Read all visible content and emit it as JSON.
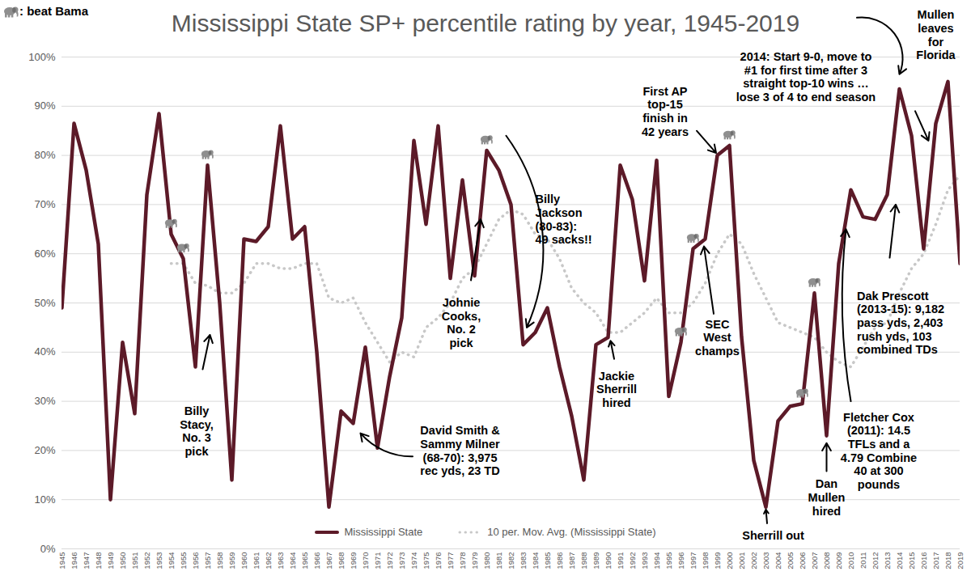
{
  "chart_data": {
    "type": "line",
    "title": "Mississippi State SP+ percentile rating by year, 1945-2019",
    "x": [
      1945,
      1946,
      1947,
      1948,
      1949,
      1950,
      1951,
      1952,
      1953,
      1954,
      1955,
      1956,
      1957,
      1958,
      1959,
      1960,
      1961,
      1962,
      1963,
      1964,
      1965,
      1966,
      1967,
      1968,
      1969,
      1970,
      1971,
      1972,
      1973,
      1974,
      1975,
      1976,
      1977,
      1978,
      1979,
      1980,
      1981,
      1982,
      1983,
      1984,
      1985,
      1986,
      1987,
      1988,
      1989,
      1990,
      1991,
      1992,
      1993,
      1994,
      1995,
      1996,
      1997,
      1998,
      1999,
      2000,
      2001,
      2002,
      2003,
      2004,
      2005,
      2006,
      2007,
      2008,
      2009,
      2010,
      2011,
      2012,
      2013,
      2014,
      2015,
      2016,
      2017,
      2018,
      2019
    ],
    "series": [
      {
        "name": "Mississippi State",
        "color": "#5c1a28",
        "line_style": "solid",
        "values": [
          49,
          86.5,
          77,
          62,
          10,
          42,
          27.5,
          72,
          88.5,
          64,
          59,
          37,
          78,
          50,
          14,
          63,
          62.5,
          65.5,
          86,
          63,
          65.5,
          40,
          8.5,
          28,
          25.5,
          41,
          20.5,
          35,
          47,
          83,
          66,
          86,
          55,
          75,
          55.5,
          81,
          77,
          70,
          41.5,
          44,
          49,
          37,
          27,
          14,
          41.5,
          43,
          78,
          71,
          54.5,
          79,
          31,
          42,
          61,
          63,
          80,
          82,
          43,
          18,
          8.5,
          26,
          29,
          29.5,
          52,
          23,
          58,
          73,
          67.5,
          67,
          72,
          93.5,
          84,
          61,
          86.5,
          95,
          58
        ]
      },
      {
        "name": "10 per. Mov. Avg. (Mississippi State)",
        "color": "#c8c8c8",
        "line_style": "dotted",
        "values": [
          null,
          null,
          null,
          null,
          null,
          null,
          null,
          null,
          null,
          58,
          58,
          54,
          53.5,
          52,
          52,
          54,
          58,
          58,
          57,
          57,
          58,
          58,
          51,
          50,
          51,
          46,
          42,
          38,
          40,
          39,
          45,
          47,
          50,
          55,
          57,
          62,
          67,
          69,
          68,
          64,
          63,
          59,
          53,
          50,
          48,
          44,
          44,
          46,
          48,
          51,
          48,
          48,
          50,
          54,
          60,
          64,
          62,
          56,
          51,
          46,
          45,
          44,
          43,
          40,
          38,
          37,
          41,
          45,
          46,
          52,
          57,
          60,
          66,
          73,
          76
        ]
      }
    ],
    "xlim": [
      1945,
      2019
    ],
    "xticks": [
      1945,
      1946,
      1947,
      1948,
      1949,
      1950,
      1951,
      1952,
      1953,
      1954,
      1955,
      1956,
      1957,
      1958,
      1959,
      1960,
      1961,
      1962,
      1963,
      1964,
      1965,
      1966,
      1967,
      1968,
      1969,
      1970,
      1971,
      1972,
      1973,
      1974,
      1975,
      1976,
      1977,
      1978,
      1979,
      1980,
      1981,
      1982,
      1983,
      1984,
      1985,
      1986,
      1987,
      1988,
      1989,
      1990,
      1991,
      1992,
      1993,
      1994,
      1995,
      1996,
      1997,
      1998,
      1999,
      2000,
      2001,
      2002,
      2003,
      2004,
      2005,
      2006,
      2007,
      2008,
      2009,
      2010,
      2011,
      2012,
      2013,
      2014,
      2015,
      2016,
      2017,
      2018,
      2019
    ],
    "ylim": [
      0,
      100
    ],
    "yticks": [
      {
        "value": 0,
        "label": "0%"
      },
      {
        "value": 10,
        "label": "10%"
      },
      {
        "value": 20,
        "label": "20%"
      },
      {
        "value": 30,
        "label": "30%"
      },
      {
        "value": 40,
        "label": "40%"
      },
      {
        "value": 50,
        "label": "50%"
      },
      {
        "value": 60,
        "label": "60%"
      },
      {
        "value": 70,
        "label": "70%"
      },
      {
        "value": 80,
        "label": "80%"
      },
      {
        "value": 90,
        "label": "90%"
      },
      {
        "value": 100,
        "label": "100%"
      }
    ],
    "grid": true,
    "legend": "bottom",
    "beat_bama": {
      "label": ": beat Bama",
      "x": [
        1954,
        1955,
        1957,
        1980,
        1996,
        1997,
        2000,
        2006,
        2007
      ]
    },
    "annotations": [
      "Billy\nStacy,\nNo. 3\npick",
      "David Smith &\nSammy Milner\n(68-70): 3,975\nrec yds, 23 TD",
      "Johnie\nCooks,\nNo. 2\npick",
      "Billy\nJackson\n(80-83):\n49 sacks!!",
      "Jackie\nSherrill\nhired",
      "First AP\ntop-15\nfinish in\n42 years",
      "SEC\nWest\nchamps",
      "Sherrill out",
      "Dan\nMullen\nhired",
      "Fletcher Cox\n(2011): 14.5\nTFLs and a\n4.79 Combine\n40 at 300\npounds",
      "Dak Prescott\n(2013-15): 9,182\npass yds, 2,403\nrush yds, 103\ncombined TDs",
      "2014: Start 9-0, move to\n#1 for first time after 3\nstraight top-10 wins …\nlose 3 of 4 to end season",
      "Mullen\nleaves\nfor\nFlorida"
    ]
  }
}
